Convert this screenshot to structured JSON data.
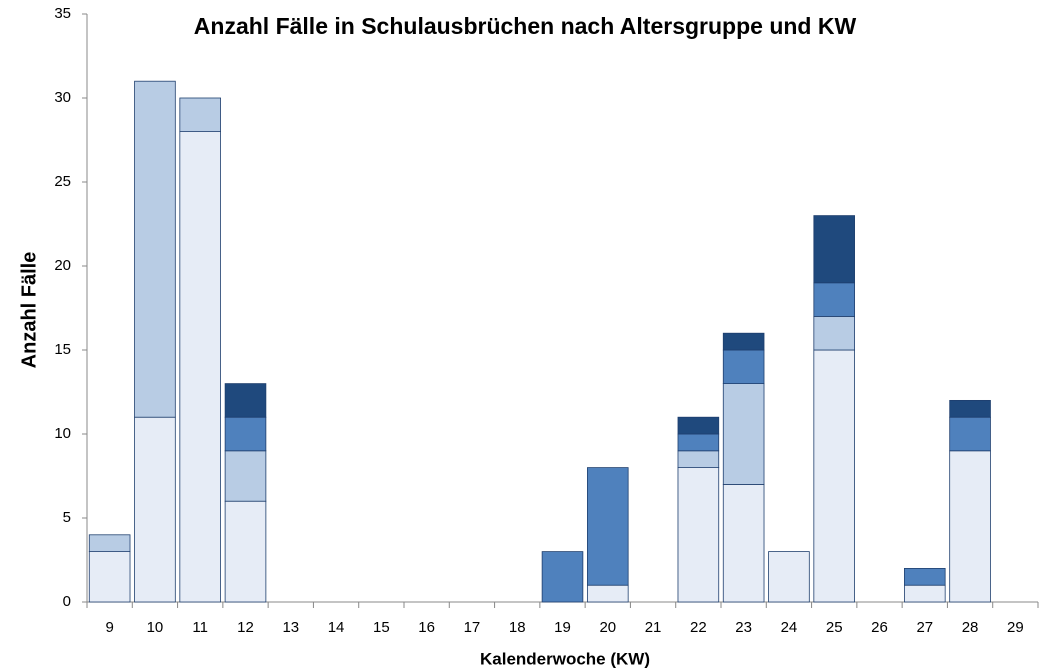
{
  "chart_data": {
    "type": "bar",
    "stacked": true,
    "title": "Anzahl Fälle in Schulausbrüchen nach Altersgruppe und KW",
    "x_label": "Kalenderwoche (KW)",
    "y_label": "Anzahl Fälle",
    "categories": [
      9,
      10,
      11,
      12,
      13,
      14,
      15,
      16,
      17,
      18,
      19,
      20,
      21,
      22,
      23,
      24,
      25,
      26,
      27,
      28,
      29
    ],
    "series": [
      {
        "color": "#e6ecf6",
        "values": [
          3,
          11,
          28,
          6,
          0,
          0,
          0,
          0,
          0,
          0,
          0,
          1,
          0,
          8,
          7,
          3,
          15,
          0,
          1,
          9,
          0
        ]
      },
      {
        "color": "#b8cce4",
        "values": [
          1,
          20,
          2,
          3,
          0,
          0,
          0,
          0,
          0,
          0,
          0,
          0,
          0,
          1,
          6,
          0,
          2,
          0,
          0,
          0,
          0
        ]
      },
      {
        "color": "#4f81bd",
        "values": [
          0,
          0,
          0,
          2,
          0,
          0,
          0,
          0,
          0,
          0,
          3,
          7,
          0,
          1,
          2,
          0,
          2,
          0,
          1,
          2,
          0
        ]
      },
      {
        "color": "#1f497d",
        "values": [
          0,
          0,
          0,
          2,
          0,
          0,
          0,
          0,
          0,
          0,
          0,
          0,
          0,
          1,
          1,
          0,
          4,
          0,
          0,
          1,
          0
        ]
      }
    ],
    "ylim": [
      0,
      35
    ],
    "yticks": [
      0,
      5,
      10,
      15,
      20,
      25,
      30,
      35
    ],
    "grid": false
  }
}
